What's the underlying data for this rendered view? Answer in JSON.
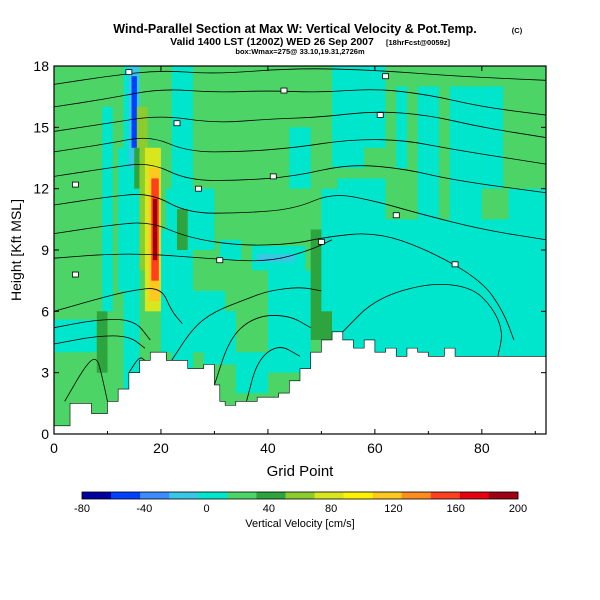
{
  "chart_data": {
    "type": "heatmap",
    "title": "Wind-Parallel Section at Max W: Vertical Velocity & Pot.Temp.",
    "title_units": "(C)",
    "subtitle": "Valid 1400 LST (1200Z) WED 26 Sep 2007",
    "subtitle_note": "[18hrFcst@0059z]",
    "subtitle2": "box:Wmax=275@ 33.10,19.31,2726m",
    "xlabel": "Grid Point",
    "ylabel": "Height [Kft MSL]",
    "xlim": [
      0,
      92
    ],
    "ylim": [
      0,
      18
    ],
    "x_ticks": [
      "0",
      "20",
      "40",
      "60",
      "80"
    ],
    "y_ticks": [
      "0",
      "3",
      "6",
      "9",
      "12",
      "15",
      "18"
    ],
    "colorbar": {
      "label": "Vertical Velocity [cm/s]",
      "ticks": [
        "-80",
        "-40",
        "0",
        "40",
        "80",
        "120",
        "160",
        "200"
      ],
      "range": [
        -80,
        200
      ],
      "colors": [
        "#0000a0",
        "#0040ff",
        "#3a8cff",
        "#38c8e6",
        "#00e6cc",
        "#4cd466",
        "#2ea43e",
        "#8ccc2e",
        "#d8e61e",
        "#fff200",
        "#ffc81e",
        "#ff8c1e",
        "#ff4020",
        "#e60010",
        "#a00014"
      ]
    },
    "max_w": 275,
    "terrain": [
      [
        0,
        0.4
      ],
      [
        3,
        0.4
      ],
      [
        3,
        1.5
      ],
      [
        7,
        1.5
      ],
      [
        7,
        1.0
      ],
      [
        10,
        1.0
      ],
      [
        10,
        1.6
      ],
      [
        12,
        1.6
      ],
      [
        12,
        2.2
      ],
      [
        14,
        2.2
      ],
      [
        14,
        3.0
      ],
      [
        16,
        3.0
      ],
      [
        16,
        3.6
      ],
      [
        18,
        3.6
      ],
      [
        18,
        4.0
      ],
      [
        21,
        4.0
      ],
      [
        21,
        3.6
      ],
      [
        25,
        3.6
      ],
      [
        25,
        3.2
      ],
      [
        28,
        3.2
      ],
      [
        28,
        3.4
      ],
      [
        30,
        3.4
      ],
      [
        30,
        2.4
      ],
      [
        31,
        2.4
      ],
      [
        31,
        1.6
      ],
      [
        32,
        1.6
      ],
      [
        32,
        1.4
      ],
      [
        34,
        1.4
      ],
      [
        34,
        1.6
      ],
      [
        38,
        1.6
      ],
      [
        38,
        1.8
      ],
      [
        42,
        1.8
      ],
      [
        42,
        2.0
      ],
      [
        44,
        2.0
      ],
      [
        44,
        2.6
      ],
      [
        46,
        2.6
      ],
      [
        46,
        3.2
      ],
      [
        48,
        3.2
      ],
      [
        48,
        4.0
      ],
      [
        50,
        4.0
      ],
      [
        50,
        4.6
      ],
      [
        52,
        4.6
      ],
      [
        52,
        5.0
      ],
      [
        54,
        5.0
      ],
      [
        54,
        4.6
      ],
      [
        56,
        4.6
      ],
      [
        56,
        4.2
      ],
      [
        58,
        4.2
      ],
      [
        58,
        4.6
      ],
      [
        60,
        4.6
      ],
      [
        60,
        4.0
      ],
      [
        62,
        4.0
      ],
      [
        62,
        4.2
      ],
      [
        64,
        4.2
      ],
      [
        64,
        3.8
      ],
      [
        66,
        3.8
      ],
      [
        66,
        4.2
      ],
      [
        68,
        4.2
      ],
      [
        68,
        4.0
      ],
      [
        70,
        4.0
      ],
      [
        70,
        3.8
      ],
      [
        73,
        3.8
      ],
      [
        73,
        4.2
      ],
      [
        75,
        4.2
      ],
      [
        75,
        3.8
      ],
      [
        78,
        3.8
      ],
      [
        78,
        3.8
      ],
      [
        92,
        3.8
      ]
    ],
    "w_cells": [
      {
        "x": [
          0,
          92
        ],
        "y": [
          0,
          18
        ],
        "w": 20
      },
      {
        "x": [
          0,
          8
        ],
        "y": [
          4.0,
          5.6
        ],
        "w": 5
      },
      {
        "x": [
          9,
          11
        ],
        "y": [
          6,
          16
        ],
        "w": 2
      },
      {
        "x": [
          12,
          13
        ],
        "y": [
          7,
          14
        ],
        "w": -5
      },
      {
        "x": [
          13,
          16
        ],
        "y": [
          0,
          18
        ],
        "w": -5
      },
      {
        "x": [
          14,
          16
        ],
        "y": [
          13,
          18
        ],
        "w": -20
      },
      {
        "x": [
          14.5,
          15.5
        ],
        "y": [
          14,
          17.5
        ],
        "w": -45
      },
      {
        "x": [
          15,
          16
        ],
        "y": [
          12,
          14
        ],
        "w": 45
      },
      {
        "x": [
          15.5,
          17.5
        ],
        "y": [
          14,
          16
        ],
        "w": 55
      },
      {
        "x": [
          16,
          18.5
        ],
        "y": [
          8,
          14
        ],
        "w": 55
      },
      {
        "x": [
          17,
          20
        ],
        "y": [
          6,
          14
        ],
        "w": 75
      },
      {
        "x": [
          17.8,
          19.8
        ],
        "y": [
          6.5,
          13
        ],
        "w": 110
      },
      {
        "x": [
          18.2,
          19.6
        ],
        "y": [
          7.5,
          12.5
        ],
        "w": 150
      },
      {
        "x": [
          18.5,
          19.3
        ],
        "y": [
          8.5,
          11.5
        ],
        "w": 200
      },
      {
        "x": [
          20,
          22
        ],
        "y": [
          4,
          10
        ],
        "w": -5
      },
      {
        "x": [
          21,
          24
        ],
        "y": [
          8,
          12
        ],
        "w": 5
      },
      {
        "x": [
          22,
          26
        ],
        "y": [
          0,
          18
        ],
        "w": 5
      },
      {
        "x": [
          23,
          25
        ],
        "y": [
          9,
          11
        ],
        "w": 45
      },
      {
        "x": [
          26,
          30
        ],
        "y": [
          9,
          12
        ],
        "w": 5
      },
      {
        "x": [
          31,
          35
        ],
        "y": [
          8.5,
          9.5
        ],
        "w": -5
      },
      {
        "x": [
          37,
          47
        ],
        "y": [
          8,
          9.2
        ],
        "w": -5
      },
      {
        "x": [
          38,
          45
        ],
        "y": [
          8.4,
          8.8
        ],
        "w": -20
      },
      {
        "x": [
          24,
          32
        ],
        "y": [
          4,
          7
        ],
        "w": 5
      },
      {
        "x": [
          28,
          34
        ],
        "y": [
          3.4,
          6
        ],
        "w": 5
      },
      {
        "x": [
          34,
          40
        ],
        "y": [
          2.0,
          4.0
        ],
        "w": 5
      },
      {
        "x": [
          40,
          48
        ],
        "y": [
          3.0,
          8
        ],
        "w": 5
      },
      {
        "x": [
          48,
          52
        ],
        "y": [
          4.6,
          10
        ],
        "w": 45
      },
      {
        "x": [
          50,
          53
        ],
        "y": [
          6,
          12
        ],
        "w": 5
      },
      {
        "x": [
          52,
          92
        ],
        "y": [
          3.8,
          10.5
        ],
        "w": 5
      },
      {
        "x": [
          53,
          62
        ],
        "y": [
          10,
          12.5
        ],
        "w": 5
      },
      {
        "x": [
          52,
          58
        ],
        "y": [
          13,
          18
        ],
        "w": 5
      },
      {
        "x": [
          62,
          66
        ],
        "y": [
          6,
          8
        ],
        "w": 5
      },
      {
        "x": [
          68,
          72
        ],
        "y": [
          10,
          17
        ],
        "w": 5
      },
      {
        "x": [
          74,
          80
        ],
        "y": [
          10,
          17
        ],
        "w": 5
      },
      {
        "x": [
          80,
          84
        ],
        "y": [
          12,
          17
        ],
        "w": 5
      },
      {
        "x": [
          85,
          92
        ],
        "y": [
          9,
          12
        ],
        "w": 5
      },
      {
        "x": [
          58,
          62
        ],
        "y": [
          14,
          18
        ],
        "w": 5
      },
      {
        "x": [
          64,
          66
        ],
        "y": [
          13,
          17
        ],
        "w": 5
      },
      {
        "x": [
          44,
          48
        ],
        "y": [
          12,
          15
        ],
        "w": 5
      },
      {
        "x": [
          8,
          10
        ],
        "y": [
          3,
          6
        ],
        "w": 45
      }
    ],
    "theta_contours": [
      {
        "label": "",
        "points": [
          [
            0,
            17.1
          ],
          [
            10,
            17.5
          ],
          [
            20,
            17.8
          ],
          [
            30,
            17.6
          ],
          [
            45,
            17.9
          ],
          [
            60,
            17.8
          ],
          [
            75,
            17.5
          ],
          [
            92,
            17.3
          ]
        ]
      },
      {
        "label": "",
        "points": [
          [
            0,
            16.0
          ],
          [
            10,
            16.4
          ],
          [
            20,
            16.9
          ],
          [
            30,
            16.7
          ],
          [
            40,
            16.8
          ],
          [
            50,
            16.7
          ],
          [
            60,
            16.9
          ],
          [
            70,
            16.6
          ],
          [
            80,
            16.0
          ],
          [
            92,
            15.6
          ]
        ]
      },
      {
        "label": "",
        "points": [
          [
            0,
            14.8
          ],
          [
            10,
            15.2
          ],
          [
            20,
            15.6
          ],
          [
            30,
            15.2
          ],
          [
            40,
            15.4
          ],
          [
            50,
            15.5
          ],
          [
            60,
            15.8
          ],
          [
            70,
            15.6
          ],
          [
            80,
            15.0
          ],
          [
            92,
            14.5
          ]
        ]
      },
      {
        "label": "",
        "points": [
          [
            0,
            13.8
          ],
          [
            10,
            14.2
          ],
          [
            18,
            14.6
          ],
          [
            25,
            13.8
          ],
          [
            35,
            13.8
          ],
          [
            45,
            14.0
          ],
          [
            55,
            14.4
          ],
          [
            65,
            14.4
          ],
          [
            75,
            13.9
          ],
          [
            92,
            13.2
          ]
        ]
      },
      {
        "label": "",
        "points": [
          [
            0,
            12.6
          ],
          [
            10,
            13.0
          ],
          [
            18,
            13.3
          ],
          [
            25,
            12.4
          ],
          [
            35,
            12.4
          ],
          [
            45,
            12.6
          ],
          [
            55,
            13.2
          ],
          [
            65,
            13.0
          ],
          [
            75,
            12.4
          ],
          [
            92,
            11.8
          ]
        ]
      },
      {
        "label": "",
        "points": [
          [
            0,
            11.2
          ],
          [
            10,
            11.6
          ],
          [
            18,
            11.8
          ],
          [
            25,
            10.8
          ],
          [
            35,
            10.8
          ],
          [
            45,
            11.0
          ],
          [
            52,
            11.8
          ],
          [
            60,
            11.4
          ],
          [
            68,
            10.8
          ],
          [
            80,
            10.0
          ],
          [
            92,
            9.5
          ]
        ]
      },
      {
        "label": "",
        "points": [
          [
            0,
            9.8
          ],
          [
            10,
            10.2
          ],
          [
            18,
            10.4
          ],
          [
            25,
            9.6
          ],
          [
            35,
            9.2
          ],
          [
            45,
            9.3
          ],
          [
            50,
            9.6
          ],
          [
            60,
            9.9
          ],
          [
            70,
            9.0
          ],
          [
            80,
            7.5
          ],
          [
            84,
            6.0
          ],
          [
            86,
            4.6
          ]
        ]
      },
      {
        "label": "",
        "points": [
          [
            0,
            8.6
          ],
          [
            10,
            8.8
          ],
          [
            18,
            8.8
          ],
          [
            28,
            8.6
          ],
          [
            40,
            8.4
          ],
          [
            48,
            9.0
          ],
          [
            52,
            9.5
          ]
        ]
      },
      {
        "label": "",
        "points": [
          [
            0,
            6.0
          ],
          [
            8,
            6.6
          ],
          [
            14,
            7.0
          ],
          [
            20,
            7.2
          ],
          [
            22,
            6.0
          ],
          [
            24,
            5.4
          ]
        ]
      },
      {
        "label": "",
        "points": [
          [
            0,
            5.2
          ],
          [
            8,
            5.6
          ],
          [
            15,
            5.6
          ],
          [
            18,
            4.6
          ]
        ]
      },
      {
        "label": "",
        "points": [
          [
            0,
            4.4
          ],
          [
            8,
            4.8
          ],
          [
            14,
            4.8
          ],
          [
            17,
            4.2
          ]
        ]
      },
      {
        "label": "",
        "points": [
          [
            2,
            1.6
          ],
          [
            6,
            3.4
          ],
          [
            8,
            3.8
          ],
          [
            9,
            2.8
          ],
          [
            10,
            1.6
          ]
        ]
      },
      {
        "label": "",
        "points": [
          [
            14,
            3.0
          ],
          [
            16,
            3.8
          ],
          [
            17,
            3.6
          ]
        ]
      },
      {
        "label": "",
        "points": [
          [
            22,
            3.6
          ],
          [
            26,
            5.2
          ],
          [
            30,
            6.0
          ],
          [
            36,
            6.6
          ],
          [
            40,
            7.0
          ],
          [
            46,
            7.2
          ],
          [
            50,
            7.0
          ]
        ]
      },
      {
        "label": "",
        "points": [
          [
            30,
            2.4
          ],
          [
            33,
            4.8
          ],
          [
            38,
            5.8
          ],
          [
            44,
            5.8
          ],
          [
            48,
            5.2
          ]
        ]
      },
      {
        "label": "",
        "points": [
          [
            36,
            1.6
          ],
          [
            38,
            3.6
          ],
          [
            42,
            4.4
          ],
          [
            46,
            3.8
          ]
        ]
      },
      {
        "label": "",
        "points": [
          [
            54,
            5.0
          ],
          [
            60,
            6.6
          ],
          [
            70,
            7.4
          ],
          [
            78,
            7.2
          ],
          [
            82,
            6.2
          ],
          [
            84,
            5.0
          ],
          [
            83,
            3.8
          ]
        ]
      }
    ],
    "theta_labels": [
      {
        "x": 14,
        "y": 17.7
      },
      {
        "x": 43,
        "y": 16.8
      },
      {
        "x": 62,
        "y": 17.5
      },
      {
        "x": 23,
        "y": 15.2
      },
      {
        "x": 61,
        "y": 15.6
      },
      {
        "x": 4,
        "y": 12.2
      },
      {
        "x": 27,
        "y": 12.0
      },
      {
        "x": 41,
        "y": 12.6
      },
      {
        "x": 64,
        "y": 10.7
      },
      {
        "x": 50,
        "y": 9.4
      },
      {
        "x": 31,
        "y": 8.5
      },
      {
        "x": 75,
        "y": 8.3
      },
      {
        "x": 4,
        "y": 7.8
      }
    ]
  },
  "colors": {
    "background": "#ffffff",
    "contour": "#000000",
    "terrain": "#ffffff"
  }
}
